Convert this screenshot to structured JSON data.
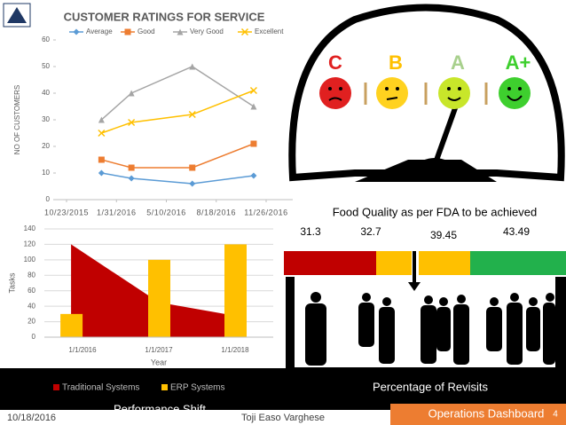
{
  "chart_data": [
    {
      "type": "line",
      "title": "CUSTOMER RATINGS FOR SERVICE",
      "y_label": "NO OF CUSTOMERS",
      "x": [
        "1/1/2016",
        "3/1/2016",
        "7/1/2016",
        "11/1/2016"
      ],
      "xlim": [
        "10/23/2015",
        "11/26/2016"
      ],
      "xticks": [
        "10/23/2015",
        "1/31/2016",
        "5/10/2016",
        "8/18/2016",
        "11/26/2016"
      ],
      "ylim": [
        0,
        60
      ],
      "yticks": [
        0,
        10,
        20,
        30,
        40,
        50,
        60
      ],
      "legend": "top",
      "series": [
        {
          "name": "Average",
          "color": "#5b9bd5",
          "marker": "diamond",
          "values": [
            10,
            8,
            6,
            9
          ]
        },
        {
          "name": "Good",
          "color": "#ed7d31",
          "marker": "square",
          "values": [
            15,
            12,
            12,
            21
          ]
        },
        {
          "name": "Very Good",
          "color": "#a5a5a5",
          "marker": "triangle",
          "values": [
            30,
            40,
            50,
            35
          ]
        },
        {
          "name": "Excellent",
          "color": "#ffc000",
          "marker": "x",
          "values": [
            25,
            29,
            32,
            41
          ]
        }
      ]
    },
    {
      "type": "combo",
      "caption": "Performance Shift",
      "y_label": "Tasks",
      "x_label": "Year",
      "categories": [
        "1/1/2016",
        "1/1/2017",
        "1/1/2018"
      ],
      "ylim": [
        0,
        140
      ],
      "yticks": [
        0,
        20,
        40,
        60,
        80,
        100,
        120,
        140
      ],
      "legend": "bottom",
      "series": [
        {
          "name": "Traditional Systems",
          "kind": "area",
          "color": "#c00000",
          "values": [
            120,
            45,
            25
          ]
        },
        {
          "name": "ERP Systems",
          "kind": "bar",
          "color": "#ffc000",
          "values": [
            30,
            100,
            120
          ]
        }
      ]
    }
  ],
  "gauge": {
    "grades": [
      "C",
      "B",
      "A",
      "A+"
    ]
  },
  "food_quality": {
    "title": "Food Quality as per FDA to be achieved",
    "values": [
      31.3,
      32.7,
      39.45,
      43.49
    ],
    "colors": [
      "#c00000",
      "#ffc000",
      "#ffc000",
      "#22b14c"
    ],
    "caption": "Percentage of Revisits"
  },
  "footer": {
    "date": "10/18/2016",
    "author": "Toji Easo Varghese",
    "section": "Operations Dashboard",
    "page": "4"
  }
}
